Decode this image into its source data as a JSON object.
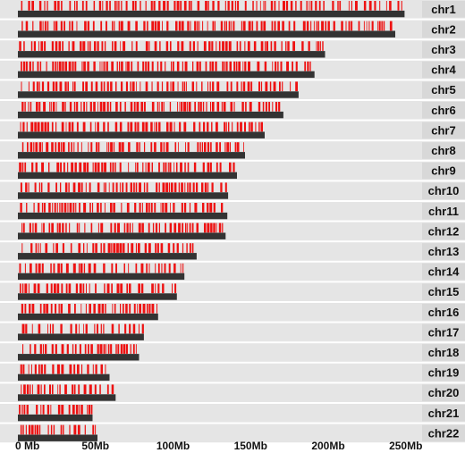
{
  "chart_data": {
    "type": "genome-density",
    "xlim": [
      0,
      250
    ],
    "x_unit": "Mb",
    "tick_values": [
      0,
      50,
      100,
      150,
      200,
      250
    ],
    "tick_labels": [
      "0 Mb",
      "50Mb",
      "100Mb",
      "150Mb",
      "200Mb",
      "250Mb"
    ],
    "colors": {
      "chromosome": "#333333",
      "feature": "#ee1111",
      "row_bg": "#e5e5e5",
      "label_bg": "#d8d8d8"
    },
    "chromosomes": [
      {
        "name": "chr1",
        "length": 249.2
      },
      {
        "name": "chr2",
        "length": 243.2
      },
      {
        "name": "chr3",
        "length": 198.0
      },
      {
        "name": "chr4",
        "length": 191.2
      },
      {
        "name": "chr5",
        "length": 180.9
      },
      {
        "name": "chr6",
        "length": 171.1
      },
      {
        "name": "chr7",
        "length": 159.1
      },
      {
        "name": "chr8",
        "length": 146.4
      },
      {
        "name": "chr9",
        "length": 141.2
      },
      {
        "name": "chr10",
        "length": 135.5
      },
      {
        "name": "chr11",
        "length": 135.0
      },
      {
        "name": "chr12",
        "length": 133.9
      },
      {
        "name": "chr13",
        "length": 115.2
      },
      {
        "name": "chr14",
        "length": 107.3
      },
      {
        "name": "chr15",
        "length": 102.5
      },
      {
        "name": "chr16",
        "length": 90.4
      },
      {
        "name": "chr17",
        "length": 81.2
      },
      {
        "name": "chr18",
        "length": 78.1
      },
      {
        "name": "chr19",
        "length": 59.1
      },
      {
        "name": "chr20",
        "length": 63.0
      },
      {
        "name": "chr21",
        "length": 48.1
      },
      {
        "name": "chr22",
        "length": 51.3
      }
    ],
    "features_note": "Red ticks mark feature positions along each chromosome; their exact coordinates are not printed on the figure."
  }
}
